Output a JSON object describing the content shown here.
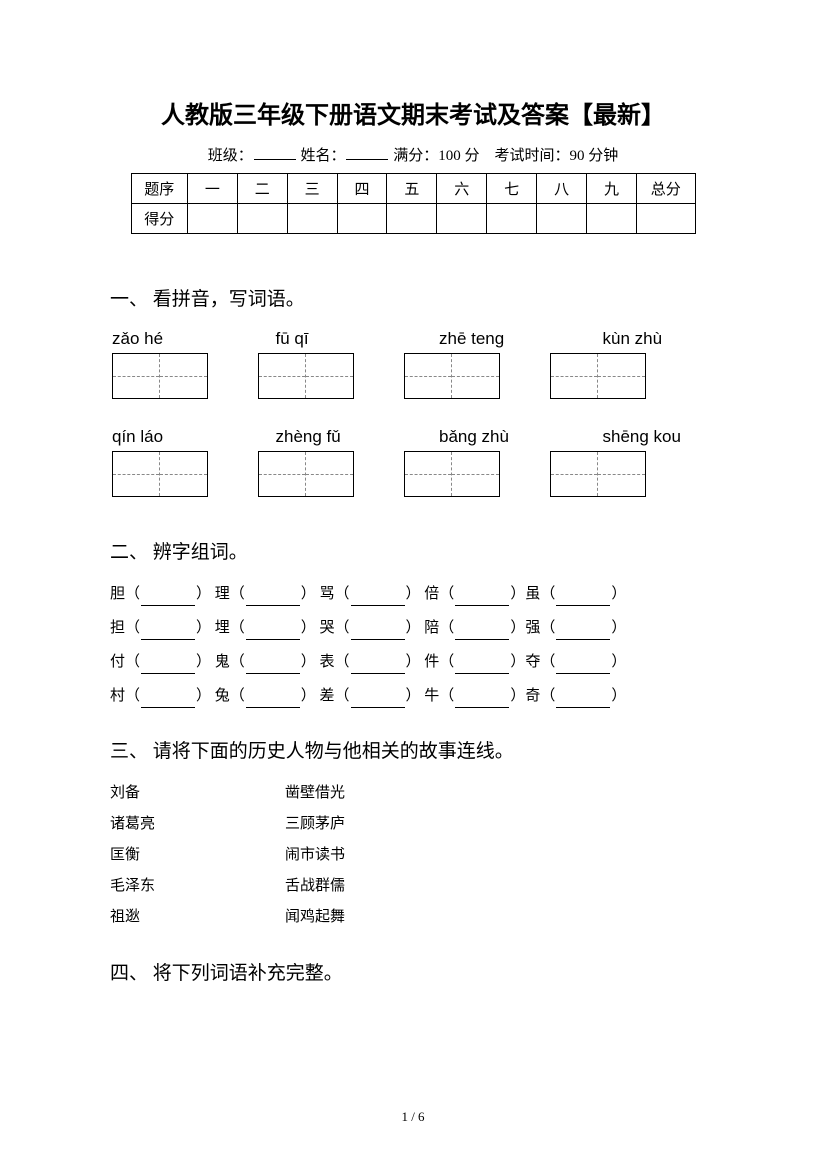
{
  "title": "人教版三年级下册语文期末考试及答案【最新】",
  "subtitle": {
    "class_label": "班级：",
    "name_label": "姓名：",
    "full_score_label": "满分：",
    "full_score_value": "100 分",
    "time_label": "考试时间：",
    "time_value": "90 分钟"
  },
  "score_table": {
    "header_label": "题序",
    "score_label": "得分",
    "columns": [
      "一",
      "二",
      "三",
      "四",
      "五",
      "六",
      "七",
      "八",
      "九"
    ],
    "total_label": "总分"
  },
  "sections": {
    "s1": {
      "heading": "一、 看拼音，写词语。",
      "row1": [
        "zǎo   hé",
        "fū   qī",
        "zhē  teng",
        "kùn   zhù"
      ],
      "row2": [
        "qín   láo",
        "zhèng  fǔ",
        "bǎng   zhù",
        "shēng   kou"
      ]
    },
    "s2": {
      "heading": "二、 辨字组词。",
      "lines": [
        [
          "胆（",
          "） 理（",
          "） 骂（",
          "） 倍（",
          "）虽（",
          "）"
        ],
        [
          "担（",
          "） 埋（",
          "） 哭（",
          "） 陪（",
          "）强（",
          "）"
        ],
        [
          "付（",
          "） 鬼（",
          "） 表（",
          "） 件（",
          "）夺（",
          "）"
        ],
        [
          "村（",
          "） 兔（",
          "） 差（",
          "） 牛（",
          "）奇（",
          "）"
        ]
      ]
    },
    "s3": {
      "heading": "三、 请将下面的历史人物与他相关的故事连线。",
      "pairs": [
        [
          "刘备",
          "凿壁借光"
        ],
        [
          "诸葛亮",
          "三顾茅庐"
        ],
        [
          "匡衡",
          "闹市读书"
        ],
        [
          "毛泽东",
          "舌战群儒"
        ],
        [
          "祖逖",
          "闻鸡起舞"
        ]
      ]
    },
    "s4": {
      "heading": "四、 将下列词语补充完整。"
    }
  },
  "footer": "1 / 6"
}
